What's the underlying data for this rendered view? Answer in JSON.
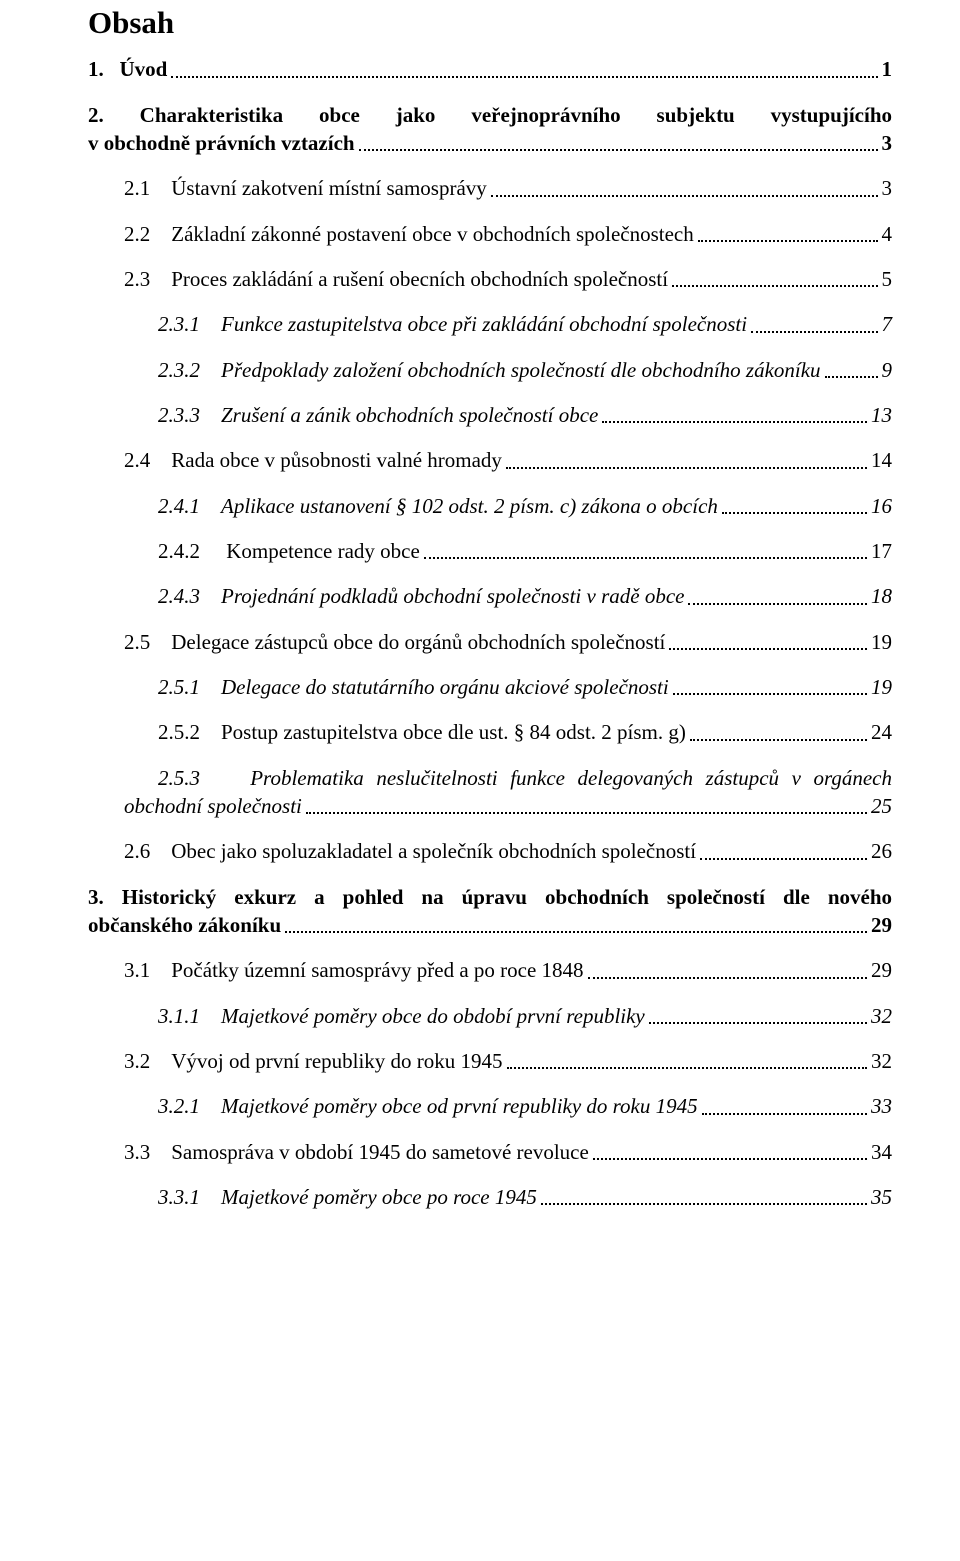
{
  "title": "Obsah",
  "colors": {
    "text": "#000000",
    "background": "#ffffff",
    "leader": "#000000"
  },
  "typography": {
    "body_font": "Times New Roman",
    "title_size_pt": 24,
    "body_size_pt": 16
  },
  "entries": [
    {
      "prefix": "1.   ",
      "label": "Úvod",
      "page": "1",
      "indent": 0,
      "bold": true,
      "italic": false
    },
    {
      "prefix": "2. ",
      "label_a": "Charakteristika obce jako veřejnoprávního subjektu vystupujícího",
      "label_b": "v obchodně právních vztazích",
      "page": "3",
      "indent": 0,
      "bold": true,
      "italic": false,
      "multiline": true
    },
    {
      "prefix": "2.1    ",
      "label": "Ústavní zakotvení místní samosprávy",
      "page": "3",
      "indent": 1,
      "bold": false,
      "italic": false
    },
    {
      "prefix": "2.2    ",
      "label": "Základní zákonné postavení obce v obchodních společnostech",
      "page": "4",
      "indent": 1,
      "bold": false,
      "italic": false
    },
    {
      "prefix": "2.3    ",
      "label": "Proces zakládání a rušení obecních obchodních společností",
      "page": "5",
      "indent": 1,
      "bold": false,
      "italic": false
    },
    {
      "prefix": "2.3.1    ",
      "label": "Funkce zastupitelstva obce při zakládání obchodní společnosti",
      "page": "7",
      "indent": 2,
      "bold": false,
      "italic": true
    },
    {
      "prefix": "2.3.2    ",
      "label": "Předpoklady založení obchodních společností dle obchodního zákoníku",
      "page": "9",
      "indent": 2,
      "bold": false,
      "italic": true
    },
    {
      "prefix": "2.3.3    ",
      "label": "Zrušení a zánik obchodních společností obce",
      "page": "13",
      "indent": 2,
      "bold": false,
      "italic": true
    },
    {
      "prefix": "2.4    ",
      "label": "Rada obce v působnosti valné hromady",
      "page": "14",
      "indent": 1,
      "bold": false,
      "italic": false
    },
    {
      "prefix": "2.4.1    ",
      "label": "Aplikace ustanovení § 102 odst. 2 písm. c) zákona o obcích",
      "page": "16",
      "indent": 2,
      "bold": false,
      "italic": true
    },
    {
      "prefix": "2.4.2     ",
      "label": "Kompetence rady obce",
      "page": "17",
      "indent": 2,
      "bold": false,
      "italic": false
    },
    {
      "prefix": "2.4.3    ",
      "label": "Projednání podkladů obchodní společnosti v radě obce",
      "page": "18",
      "indent": 2,
      "bold": false,
      "italic": true
    },
    {
      "prefix": "2.5    ",
      "label": "Delegace zástupců obce do orgánů obchodních společností",
      "page": "19",
      "indent": 1,
      "bold": false,
      "italic": false
    },
    {
      "prefix": "2.5.1    ",
      "label": "Delegace do statutárního orgánu akciové společnosti",
      "page": "19",
      "indent": 2,
      "bold": false,
      "italic": true
    },
    {
      "prefix": "2.5.2    ",
      "label": "Postup zastupitelstva obce dle ust. § 84 odst. 2 písm. g)",
      "page": "24",
      "indent": 2,
      "bold": false,
      "italic": false
    },
    {
      "prefix": "2.5.3    ",
      "label_a": "Problematika neslučitelnosti funkce delegovaných zástupců v orgánech",
      "label_b": "obchodní společnosti",
      "page": "25",
      "indent": 2,
      "bold": false,
      "italic": true,
      "multiline": true,
      "outdent_second": true
    },
    {
      "prefix": "2.6    ",
      "label": "Obec jako spoluzakladatel a společník obchodních společností",
      "page": "26",
      "indent": 1,
      "bold": false,
      "italic": false
    },
    {
      "prefix": "3. ",
      "label_a": "Historický exkurz a pohled na úpravu obchodních společností dle nového",
      "label_b": "občanského zákoníku",
      "page": "29",
      "indent": 0,
      "bold": true,
      "italic": false,
      "multiline": true
    },
    {
      "prefix": "3.1    ",
      "label": "Počátky územní samosprávy před a po roce 1848",
      "page": "29",
      "indent": 1,
      "bold": false,
      "italic": false
    },
    {
      "prefix": "3.1.1    ",
      "label": "Majetkové poměry obce do období první republiky",
      "page": "32",
      "indent": 2,
      "bold": false,
      "italic": true
    },
    {
      "prefix": "3.2    ",
      "label": "Vývoj od první republiky do roku 1945",
      "page": "32",
      "indent": 1,
      "bold": false,
      "italic": false
    },
    {
      "prefix": "3.2.1    ",
      "label": "Majetkové poměry obce od první republiky do roku 1945",
      "page": "33",
      "indent": 2,
      "bold": false,
      "italic": true
    },
    {
      "prefix": "3.3    ",
      "label": "Samospráva v období 1945 do sametové revoluce",
      "page": "34",
      "indent": 1,
      "bold": false,
      "italic": false
    },
    {
      "prefix": "3.3.1    ",
      "label": "Majetkové poměry obce po roce 1945",
      "page": "35",
      "indent": 2,
      "bold": false,
      "italic": true
    }
  ]
}
